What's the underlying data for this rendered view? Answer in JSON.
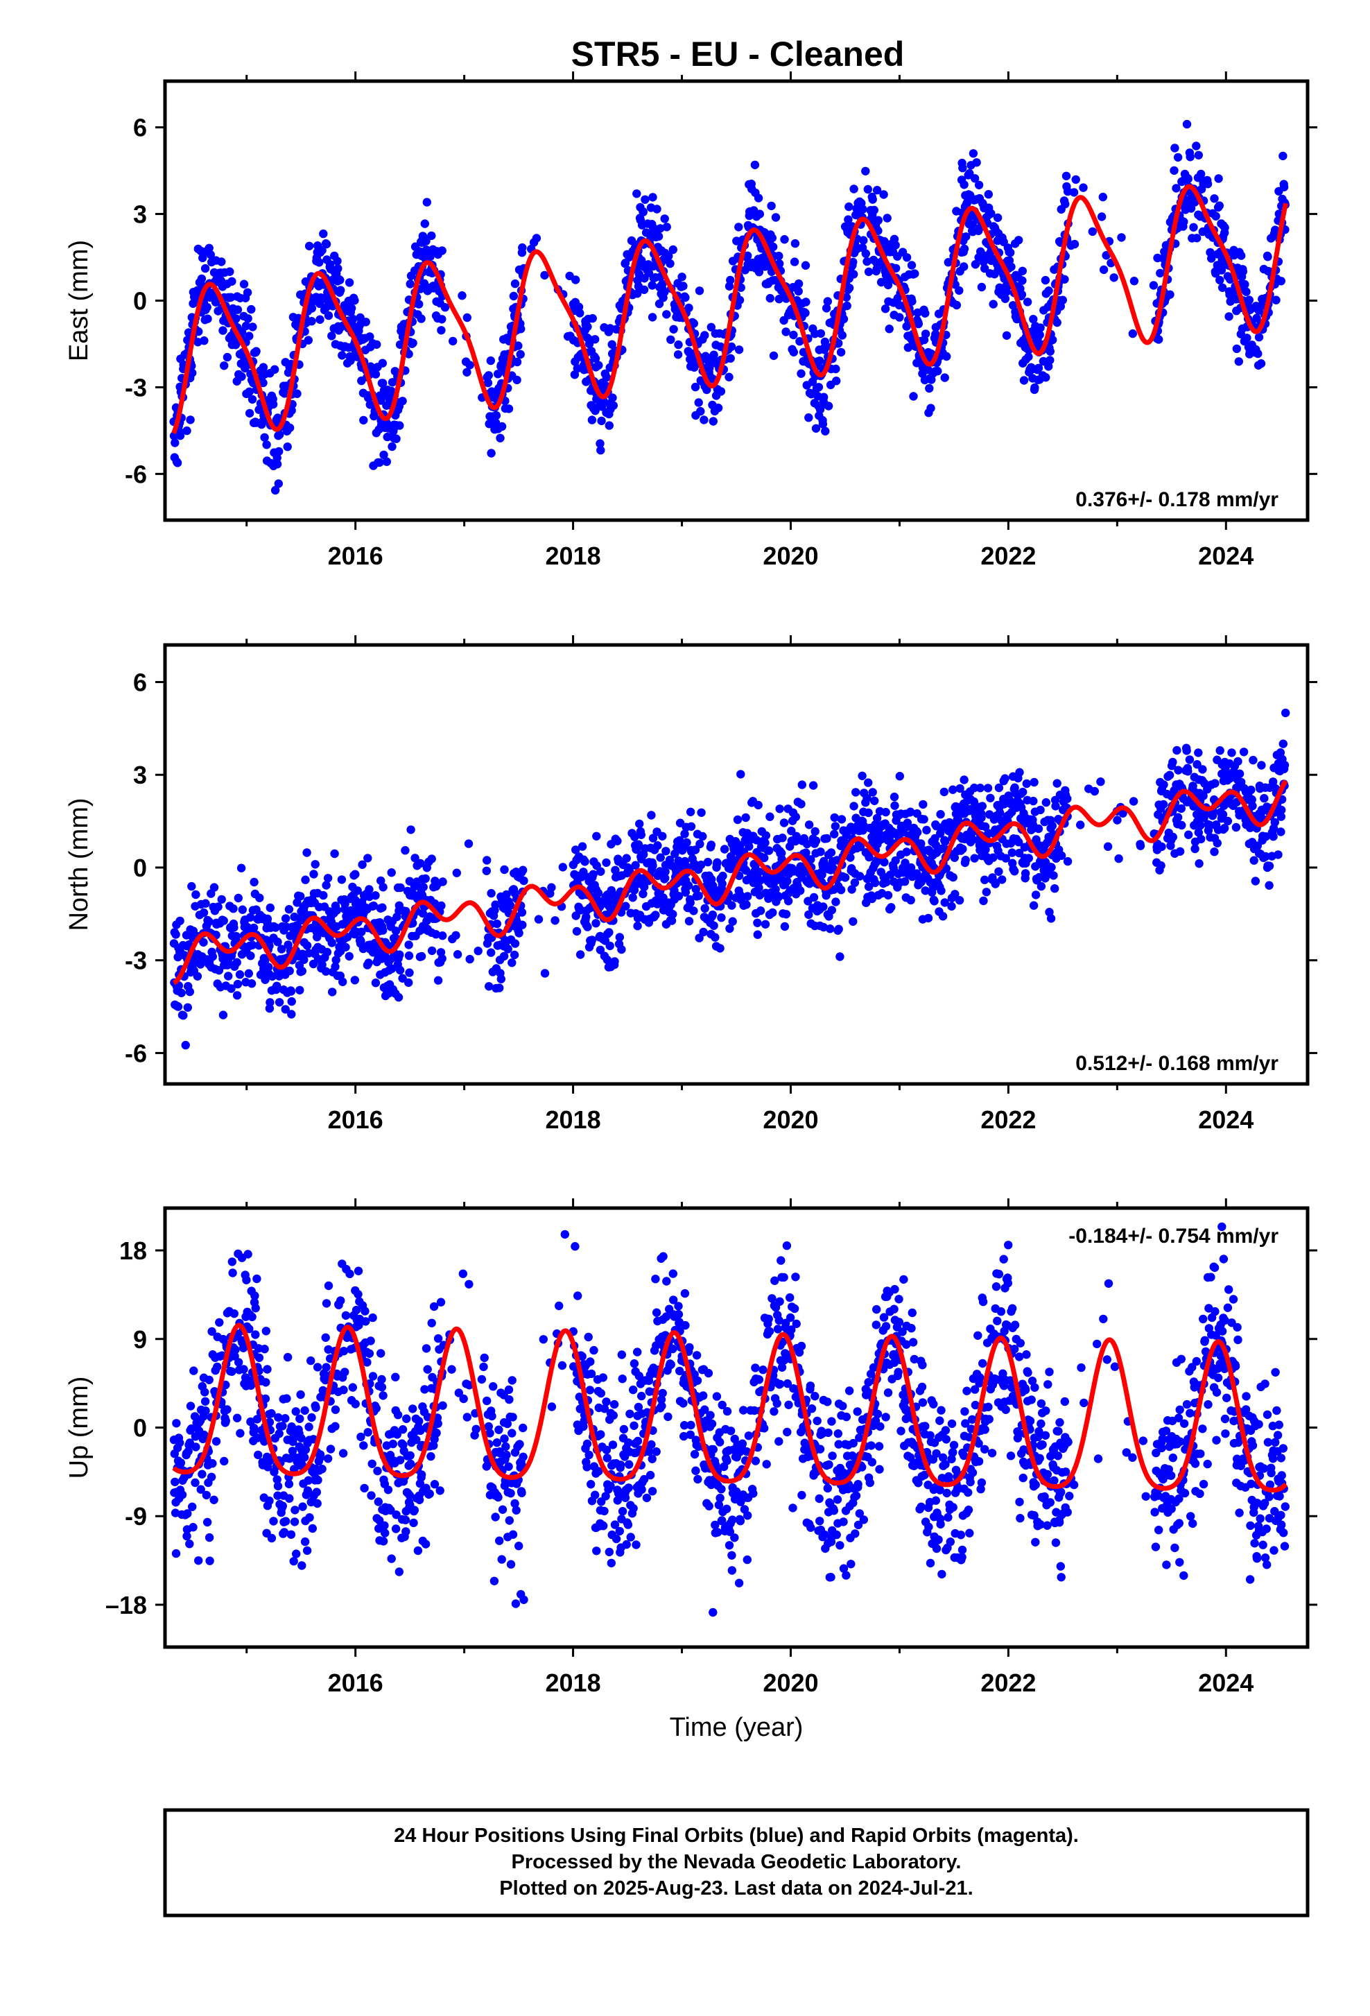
{
  "title": "STR5  - EU - Cleaned",
  "colors": {
    "points": "#0000ff",
    "fit": "#ff0000",
    "frame": "#000000",
    "background": "#ffffff"
  },
  "chart_data": [
    {
      "type": "scatter",
      "panel": "east",
      "ylabel": "East (mm)",
      "xlabel": "",
      "xlim": [
        2014.25,
        2024.75
      ],
      "ylim": [
        -7.6,
        7.6
      ],
      "xticks": [
        2016,
        2018,
        2020,
        2022,
        2024
      ],
      "yticks": [
        6,
        3,
        0,
        -3,
        -6
      ],
      "ytick_labels": [
        "6",
        "3",
        "0",
        "-3",
        "-6"
      ],
      "rate_label": "0.376+/- 0.178 mm/yr",
      "rate_position": "bottom-right",
      "series": [
        {
          "role": "observations",
          "style": "blue dots",
          "data_start": 2014.33,
          "data_end": 2024.55,
          "gaps": [
            [
              2016.8,
              2017.2
            ],
            [
              2017.55,
              2018.0
            ],
            [
              2022.55,
              2023.35
            ]
          ],
          "approx_scatter_mm": 0.9
        },
        {
          "role": "fit",
          "style": "red line",
          "x_start": 2014.33,
          "x_end": 2024.55,
          "intercept_mm": -2.05,
          "reference_year": 2014.33,
          "rate_mm_per_yr": 0.376,
          "annual_amplitude_mm": 2.4,
          "annual_peak_phase_yr": 0.4,
          "semiannual_amplitude_mm": 0.6,
          "semiannual_phase_yr": 0.25
        }
      ]
    },
    {
      "type": "scatter",
      "panel": "north",
      "ylabel": "North (mm)",
      "xlabel": "",
      "xlim": [
        2014.25,
        2024.75
      ],
      "ylim": [
        -7.0,
        7.2
      ],
      "xticks": [
        2016,
        2018,
        2020,
        2022,
        2024
      ],
      "yticks": [
        6,
        3,
        0,
        -3,
        -6
      ],
      "ytick_labels": [
        "6",
        "3",
        "0",
        "-3",
        "-6"
      ],
      "rate_label": "0.512+/- 0.168 mm/yr",
      "rate_position": "bottom-right",
      "series": [
        {
          "role": "observations",
          "style": "blue dots",
          "data_start": 2014.33,
          "data_end": 2024.55,
          "gaps": [
            [
              2016.8,
              2017.2
            ],
            [
              2017.55,
              2018.0
            ],
            [
              2022.55,
              2023.35
            ]
          ],
          "approx_scatter_mm": 0.9
        },
        {
          "role": "fit",
          "style": "red line",
          "x_start": 2014.33,
          "x_end": 2024.55,
          "intercept_mm": -2.9,
          "reference_year": 2014.33,
          "rate_mm_per_yr": 0.512,
          "annual_amplitude_mm": 0.4,
          "annual_peak_phase_yr": 0.45,
          "semiannual_amplitude_mm": 0.45,
          "semiannual_phase_yr": 0.25
        }
      ]
    },
    {
      "type": "scatter",
      "panel": "up",
      "ylabel": "Up (mm)",
      "xlabel": "Time (year)",
      "xlim": [
        2014.25,
        2024.75
      ],
      "ylim": [
        -22.3,
        22.3
      ],
      "xticks": [
        2016,
        2018,
        2020,
        2022,
        2024
      ],
      "yticks": [
        18,
        9,
        0,
        -9,
        -18
      ],
      "ytick_labels": [
        "18",
        "9",
        "0",
        "-9",
        "–18"
      ],
      "rate_label": "-0.184+/- 0.754 mm/yr",
      "rate_position": "top-right",
      "series": [
        {
          "role": "observations",
          "style": "blue dots",
          "data_start": 2014.33,
          "data_end": 2024.55,
          "gaps": [
            [
              2016.8,
              2017.2
            ],
            [
              2017.55,
              2018.0
            ],
            [
              2022.55,
              2023.35
            ]
          ],
          "approx_scatter_mm": 4.5
        },
        {
          "role": "fit",
          "style": "red line",
          "x_start": 2014.33,
          "x_end": 2024.55,
          "intercept_mm": 1.5,
          "reference_year": 2014.33,
          "rate_mm_per_yr": -0.184,
          "annual_amplitude_mm": 7.5,
          "annual_peak_phase_yr": 0.6,
          "semiannual_amplitude_mm": 1.5,
          "semiannual_phase_yr": 0.1
        }
      ]
    }
  ],
  "footer": {
    "line1": "24 Hour Positions Using Final Orbits (blue) and Rapid Orbits (magenta).",
    "line2": "Processed by the Nevada Geodetic Laboratory.",
    "line3": "Plotted on 2025-Aug-23. Last data on 2024-Jul-21."
  }
}
